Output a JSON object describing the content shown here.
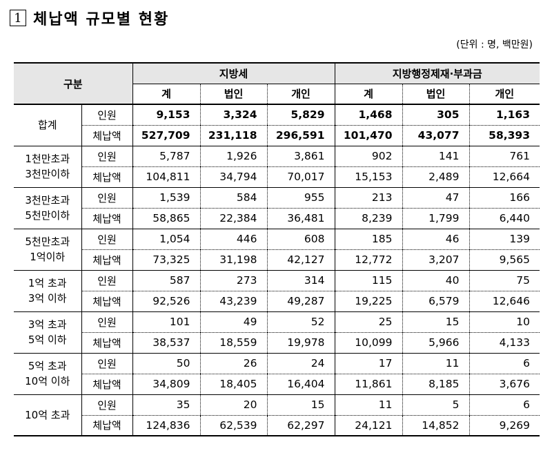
{
  "title": {
    "number": "1",
    "text": "체납액 규모별 현황"
  },
  "unit_note": "(단위 : 명, 백만원)",
  "header": {
    "category": "구분",
    "group1": "지방세",
    "group2": "지방행정제재·부과금",
    "sub": [
      "계",
      "법인",
      "개인",
      "계",
      "법인",
      "개인"
    ]
  },
  "rows": [
    {
      "category": [
        "합계"
      ],
      "bold": true,
      "count_label": "인원",
      "count": [
        "9,153",
        "3,324",
        "5,829",
        "1,468",
        "305",
        "1,163"
      ],
      "amount_label": "체납액",
      "amount": [
        "527,709",
        "231,118",
        "296,591",
        "101,470",
        "43,077",
        "58,393"
      ]
    },
    {
      "category": [
        "1천만초과",
        "3천만이하"
      ],
      "bold": false,
      "count_label": "인원",
      "count": [
        "5,787",
        "1,926",
        "3,861",
        "902",
        "141",
        "761"
      ],
      "amount_label": "체납액",
      "amount": [
        "104,811",
        "34,794",
        "70,017",
        "15,153",
        "2,489",
        "12,664"
      ]
    },
    {
      "category": [
        "3천만초과",
        "5천만이하"
      ],
      "bold": false,
      "count_label": "인원",
      "count": [
        "1,539",
        "584",
        "955",
        "213",
        "47",
        "166"
      ],
      "amount_label": "체납액",
      "amount": [
        "58,865",
        "22,384",
        "36,481",
        "8,239",
        "1,799",
        "6,440"
      ]
    },
    {
      "category": [
        "5천만초과",
        "1억이하"
      ],
      "bold": false,
      "count_label": "인원",
      "count": [
        "1,054",
        "446",
        "608",
        "185",
        "46",
        "139"
      ],
      "amount_label": "체납액",
      "amount": [
        "73,325",
        "31,198",
        "42,127",
        "12,772",
        "3,207",
        "9,565"
      ]
    },
    {
      "category": [
        "1억 초과",
        "3억 이하"
      ],
      "bold": false,
      "count_label": "인원",
      "count": [
        "587",
        "273",
        "314",
        "115",
        "40",
        "75"
      ],
      "amount_label": "체납액",
      "amount": [
        "92,526",
        "43,239",
        "49,287",
        "19,225",
        "6,579",
        "12,646"
      ]
    },
    {
      "category": [
        "3억 초과",
        "5억 이하"
      ],
      "bold": false,
      "count_label": "인원",
      "count": [
        "101",
        "49",
        "52",
        "25",
        "15",
        "10"
      ],
      "amount_label": "체납액",
      "amount": [
        "38,537",
        "18,559",
        "19,978",
        "10,099",
        "5,966",
        "4,133"
      ]
    },
    {
      "category": [
        "5억 초과",
        "10억 이하"
      ],
      "bold": false,
      "count_label": "인원",
      "count": [
        "50",
        "26",
        "24",
        "17",
        "11",
        "6"
      ],
      "amount_label": "체납액",
      "amount": [
        "34,809",
        "18,405",
        "16,404",
        "11,861",
        "8,185",
        "3,676"
      ]
    },
    {
      "category": [
        "10억 초과"
      ],
      "bold": false,
      "count_label": "인원",
      "count": [
        "35",
        "20",
        "15",
        "11",
        "5",
        "6"
      ],
      "amount_label": "체납액",
      "amount": [
        "124,836",
        "62,539",
        "62,297",
        "24,121",
        "14,852",
        "9,269"
      ]
    }
  ]
}
